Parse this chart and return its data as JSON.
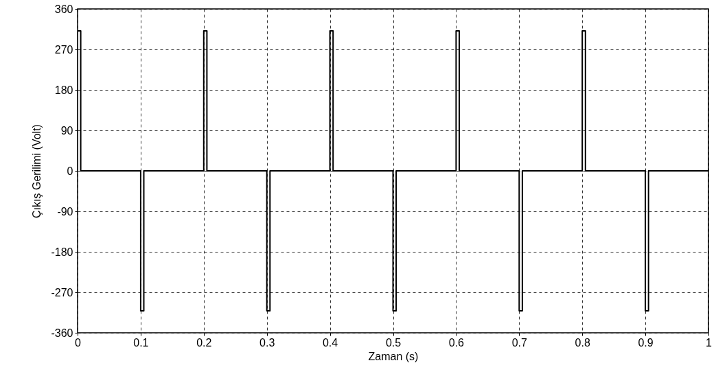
{
  "chart_data": {
    "type": "line",
    "xlabel": "Zaman (s)",
    "ylabel": "Çıkış Gerilimi (Volt)",
    "x": [
      0,
      0,
      0.005,
      0.005,
      0.1,
      0.1,
      0.105,
      0.105,
      0.2,
      0.2,
      0.205,
      0.205,
      0.3,
      0.3,
      0.305,
      0.305,
      0.4,
      0.4,
      0.405,
      0.405,
      0.5,
      0.5,
      0.505,
      0.505,
      0.6,
      0.6,
      0.605,
      0.605,
      0.7,
      0.7,
      0.705,
      0.705,
      0.8,
      0.8,
      0.805,
      0.805,
      0.9,
      0.9,
      0.905,
      0.905,
      1
    ],
    "series": [
      {
        "color": "#000000",
        "values": [
          0,
          311,
          311,
          0,
          0,
          -311,
          -311,
          0,
          0,
          311,
          311,
          0,
          0,
          -311,
          -311,
          0,
          0,
          311,
          311,
          0,
          0,
          -311,
          -311,
          0,
          0,
          311,
          311,
          0,
          0,
          -311,
          -311,
          0,
          0,
          311,
          311,
          0,
          0,
          -311,
          -311,
          0,
          0
        ]
      }
    ],
    "xlim": [
      0,
      1
    ],
    "xticks": [
      0,
      0.1,
      0.2,
      0.3,
      0.4,
      0.5,
      0.6,
      0.7,
      0.8,
      0.9,
      1
    ],
    "ylim": [
      -360,
      360
    ],
    "yticks": [
      -360,
      -270,
      -180,
      -90,
      0,
      90,
      180,
      270,
      360
    ],
    "grid": true,
    "line_style": "solid"
  }
}
